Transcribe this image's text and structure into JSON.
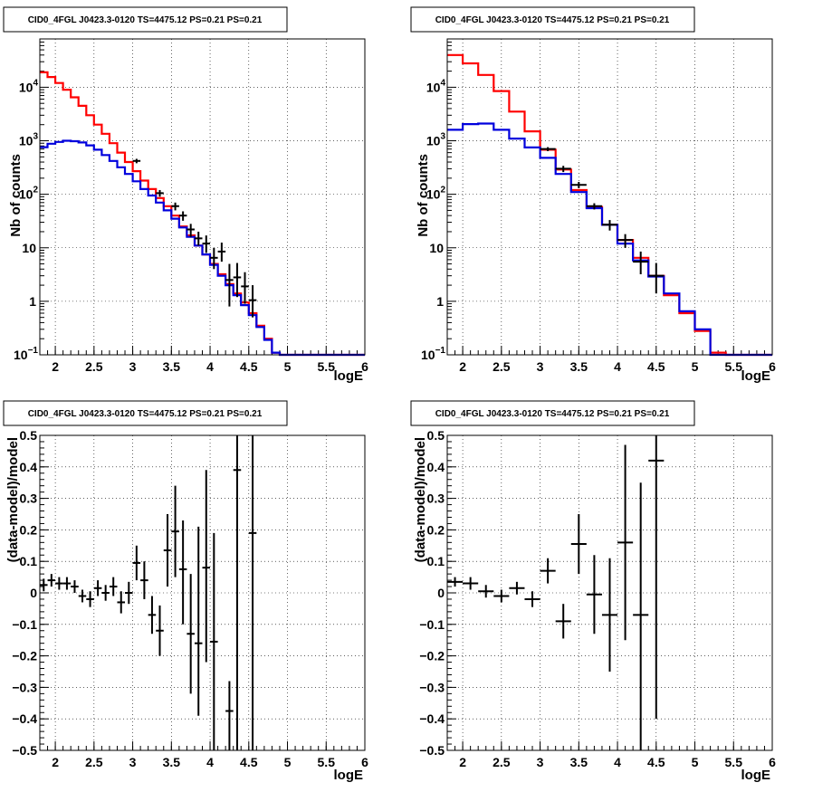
{
  "chart_data": [
    {
      "type": "line",
      "title": "CID0_4FGL J0423.3-0120 TS=4475.12 PS=0.21 PS=0.21",
      "xlabel": "logE",
      "ylabel": "Nb of counts",
      "xlim": [
        1.8,
        6.0
      ],
      "ylim": [
        0.1,
        80000
      ],
      "yscale": "log",
      "grid": true,
      "x_ticks": [
        "2",
        "2.5",
        "3",
        "3.5",
        "4",
        "4.5",
        "5",
        "5.5",
        "6"
      ],
      "y_ticks": [
        {
          "value": 0.1,
          "label": "10",
          "sup": "−1"
        },
        {
          "value": 1,
          "label": "1",
          "sup": ""
        },
        {
          "value": 10,
          "label": "10",
          "sup": ""
        },
        {
          "value": 100,
          "label": "10",
          "sup": "2"
        },
        {
          "value": 1000,
          "label": "10",
          "sup": "3"
        },
        {
          "value": 10000,
          "label": "10",
          "sup": "4"
        }
      ],
      "bin_edges": [
        1.8,
        1.9,
        2.0,
        2.1,
        2.2,
        2.3,
        2.4,
        2.5,
        2.6,
        2.7,
        2.8,
        2.9,
        3.0,
        3.1,
        3.2,
        3.3,
        3.4,
        3.5,
        3.6,
        3.7,
        3.8,
        3.9,
        4.0,
        4.1,
        4.2,
        4.3,
        4.4,
        4.5,
        4.6,
        4.7,
        4.8,
        4.9,
        5.0,
        5.1,
        5.2,
        5.3,
        5.4,
        5.5,
        5.6,
        5.7,
        5.8,
        5.9,
        6.0
      ],
      "series": [
        {
          "name": "",
          "color": "#ff0000",
          "values": [
            19000,
            15500,
            12000,
            9000,
            6500,
            4500,
            3000,
            2000,
            1350,
            900,
            600,
            400,
            270,
            180,
            125,
            85,
            60,
            40,
            25,
            17,
            11,
            7.5,
            5,
            3.2,
            2.1,
            1.4,
            0.95,
            0.6,
            0.35,
            0.2,
            0.11,
            0.1,
            0.1,
            0.1,
            0.1,
            0.1,
            0.1,
            0.1,
            0.1,
            0.1,
            0.1,
            0.1
          ]
        },
        {
          "name": "",
          "color": "#0000dd",
          "values": [
            760,
            880,
            950,
            1000,
            980,
            930,
            820,
            680,
            540,
            420,
            320,
            240,
            175,
            125,
            95,
            70,
            50,
            35,
            24,
            16,
            11,
            7.5,
            4.8,
            3.0,
            2.0,
            1.3,
            0.85,
            0.55,
            0.33,
            0.19,
            0.11,
            0.1,
            0.1,
            0.1,
            0.1,
            0.1,
            0.1,
            0.1,
            0.1,
            0.1,
            0.1,
            0.1
          ]
        }
      ],
      "points": [
        {
          "x": 3.05,
          "y": 420,
          "xerr": 0.05,
          "ylo": 380,
          "yhi": 460
        },
        {
          "x": 3.35,
          "y": 105,
          "xerr": 0.05,
          "ylo": 90,
          "yhi": 120
        },
        {
          "x": 3.55,
          "y": 60,
          "xerr": 0.05,
          "ylo": 50,
          "yhi": 70
        },
        {
          "x": 3.65,
          "y": 40,
          "xerr": 0.05,
          "ylo": 32,
          "yhi": 48
        },
        {
          "x": 3.75,
          "y": 22,
          "xerr": 0.05,
          "ylo": 16,
          "yhi": 28
        },
        {
          "x": 3.85,
          "y": 15,
          "xerr": 0.05,
          "ylo": 11,
          "yhi": 20
        },
        {
          "x": 3.95,
          "y": 12,
          "xerr": 0.05,
          "ylo": 8,
          "yhi": 17
        },
        {
          "x": 4.05,
          "y": 6.5,
          "xerr": 0.05,
          "ylo": 4,
          "yhi": 10
        },
        {
          "x": 4.15,
          "y": 8.5,
          "xerr": 0.05,
          "ylo": 5.5,
          "yhi": 12.5
        },
        {
          "x": 4.25,
          "y": 2.5,
          "xerr": 0.05,
          "ylo": 0.8,
          "yhi": 5
        },
        {
          "x": 4.35,
          "y": 2.8,
          "xerr": 0.05,
          "ylo": 1.2,
          "yhi": 5.2
        },
        {
          "x": 4.45,
          "y": 1.9,
          "xerr": 0.05,
          "ylo": 0.9,
          "yhi": 3.5
        },
        {
          "x": 4.55,
          "y": 1.05,
          "xerr": 0.05,
          "ylo": 0.5,
          "yhi": 2.0
        }
      ]
    },
    {
      "type": "line",
      "title": "CID0_4FGL J0423.3-0120 TS=4475.12 PS=0.21 PS=0.21",
      "xlabel": "logE",
      "ylabel": "Nb of counts",
      "xlim": [
        1.8,
        6.0
      ],
      "ylim": [
        0.1,
        80000
      ],
      "yscale": "log",
      "grid": true,
      "x_ticks": [
        "2",
        "2.5",
        "3",
        "3.5",
        "4",
        "4.5",
        "5",
        "5.5",
        "6"
      ],
      "y_ticks": [
        {
          "value": 0.1,
          "label": "10",
          "sup": "−1"
        },
        {
          "value": 1,
          "label": "1",
          "sup": ""
        },
        {
          "value": 10,
          "label": "10",
          "sup": ""
        },
        {
          "value": 100,
          "label": "10",
          "sup": "2"
        },
        {
          "value": 1000,
          "label": "10",
          "sup": "3"
        },
        {
          "value": 10000,
          "label": "10",
          "sup": "4"
        }
      ],
      "bin_edges": [
        1.8,
        2.0,
        2.2,
        2.4,
        2.6,
        2.8,
        3.0,
        3.2,
        3.4,
        3.6,
        3.8,
        4.0,
        4.2,
        4.4,
        4.6,
        4.8,
        5.0,
        5.2,
        5.4,
        5.6,
        5.8,
        6.0
      ],
      "series": [
        {
          "name": "",
          "color": "#ff0000",
          "values": [
            40000,
            28000,
            17000,
            8500,
            3500,
            1500,
            680,
            290,
            120,
            58,
            27,
            14,
            6.5,
            3.0,
            1.3,
            0.6,
            0.28,
            0.11,
            0.1,
            0.1,
            0.1
          ]
        },
        {
          "name": "",
          "color": "#0000dd",
          "values": [
            1600,
            2050,
            2100,
            1600,
            1100,
            750,
            480,
            240,
            110,
            55,
            27,
            12,
            5.8,
            2.9,
            1.4,
            0.65,
            0.3,
            0.1,
            0.1,
            0.1,
            0.1
          ]
        }
      ],
      "points": [
        {
          "x": 3.1,
          "y": 700,
          "xerr": 0.1,
          "ylo": 640,
          "yhi": 760
        },
        {
          "x": 3.3,
          "y": 300,
          "xerr": 0.1,
          "ylo": 260,
          "yhi": 340
        },
        {
          "x": 3.5,
          "y": 150,
          "xerr": 0.1,
          "ylo": 130,
          "yhi": 170
        },
        {
          "x": 3.7,
          "y": 60,
          "xerr": 0.1,
          "ylo": 52,
          "yhi": 68
        },
        {
          "x": 3.9,
          "y": 27,
          "xerr": 0.1,
          "ylo": 21,
          "yhi": 33
        },
        {
          "x": 4.1,
          "y": 14,
          "xerr": 0.1,
          "ylo": 10,
          "yhi": 18
        },
        {
          "x": 4.3,
          "y": 5.5,
          "xerr": 0.1,
          "ylo": 3.2,
          "yhi": 8.5
        },
        {
          "x": 4.5,
          "y": 3.0,
          "xerr": 0.1,
          "ylo": 1.4,
          "yhi": 5.2
        }
      ]
    },
    {
      "type": "scatter",
      "title": "CID0_4FGL J0423.3-0120 TS=4475.12 PS=0.21 PS=0.21",
      "xlabel": "logE",
      "ylabel": "(data-model)/model",
      "xlim": [
        1.8,
        6.0
      ],
      "ylim": [
        -0.5,
        0.5
      ],
      "grid": true,
      "x_ticks": [
        "2",
        "2.5",
        "3",
        "3.5",
        "4",
        "4.5",
        "5",
        "5.5",
        "6"
      ],
      "y_ticks": [
        "−0.5",
        "−0.4",
        "−0.3",
        "−0.2",
        "−0.1",
        "0",
        "0.1",
        "0.2",
        "0.3",
        "0.4",
        "0.5"
      ],
      "points": [
        {
          "x": 1.85,
          "y": 0.025,
          "xerr": 0.05,
          "ylo": 0.005,
          "yhi": 0.045
        },
        {
          "x": 1.95,
          "y": 0.04,
          "xerr": 0.05,
          "ylo": 0.02,
          "yhi": 0.06
        },
        {
          "x": 2.05,
          "y": 0.03,
          "xerr": 0.05,
          "ylo": 0.01,
          "yhi": 0.05
        },
        {
          "x": 2.15,
          "y": 0.03,
          "xerr": 0.05,
          "ylo": 0.01,
          "yhi": 0.05
        },
        {
          "x": 2.25,
          "y": 0.02,
          "xerr": 0.05,
          "ylo": 0.0,
          "yhi": 0.04
        },
        {
          "x": 2.35,
          "y": -0.01,
          "xerr": 0.05,
          "ylo": -0.03,
          "yhi": 0.01
        },
        {
          "x": 2.45,
          "y": -0.02,
          "xerr": 0.05,
          "ylo": -0.045,
          "yhi": 0.005
        },
        {
          "x": 2.55,
          "y": 0.015,
          "xerr": 0.05,
          "ylo": -0.01,
          "yhi": 0.04
        },
        {
          "x": 2.65,
          "y": 0.0,
          "xerr": 0.05,
          "ylo": -0.025,
          "yhi": 0.025
        },
        {
          "x": 2.75,
          "y": 0.02,
          "xerr": 0.05,
          "ylo": -0.01,
          "yhi": 0.05
        },
        {
          "x": 2.85,
          "y": -0.03,
          "xerr": 0.05,
          "ylo": -0.065,
          "yhi": 0.005
        },
        {
          "x": 2.95,
          "y": 0.0,
          "xerr": 0.05,
          "ylo": -0.035,
          "yhi": 0.035
        },
        {
          "x": 3.05,
          "y": 0.095,
          "xerr": 0.05,
          "ylo": 0.04,
          "yhi": 0.15
        },
        {
          "x": 3.15,
          "y": 0.04,
          "xerr": 0.05,
          "ylo": -0.02,
          "yhi": 0.1
        },
        {
          "x": 3.25,
          "y": -0.07,
          "xerr": 0.05,
          "ylo": -0.13,
          "yhi": -0.01
        },
        {
          "x": 3.35,
          "y": -0.12,
          "xerr": 0.05,
          "ylo": -0.2,
          "yhi": -0.04
        },
        {
          "x": 3.45,
          "y": 0.135,
          "xerr": 0.05,
          "ylo": 0.02,
          "yhi": 0.25
        },
        {
          "x": 3.55,
          "y": 0.195,
          "xerr": 0.05,
          "ylo": 0.05,
          "yhi": 0.34
        },
        {
          "x": 3.65,
          "y": 0.075,
          "xerr": 0.05,
          "ylo": -0.1,
          "yhi": 0.23
        },
        {
          "x": 3.75,
          "y": -0.13,
          "xerr": 0.05,
          "ylo": -0.32,
          "yhi": 0.06
        },
        {
          "x": 3.85,
          "y": -0.16,
          "xerr": 0.05,
          "ylo": -0.39,
          "yhi": 0.21
        },
        {
          "x": 3.95,
          "y": 0.08,
          "xerr": 0.05,
          "ylo": -0.22,
          "yhi": 0.39
        },
        {
          "x": 4.05,
          "y": -0.155,
          "xerr": 0.05,
          "ylo": -0.5,
          "yhi": 0.19
        },
        {
          "x": 4.25,
          "y": -0.375,
          "xerr": 0.05,
          "ylo": -0.5,
          "yhi": -0.28
        },
        {
          "x": 4.35,
          "y": 0.39,
          "xerr": 0.05,
          "ylo": -0.5,
          "yhi": 0.5
        },
        {
          "x": 4.55,
          "y": 0.19,
          "xerr": 0.05,
          "ylo": -0.5,
          "yhi": 0.5
        }
      ]
    },
    {
      "type": "scatter",
      "title": "CID0_4FGL J0423.3-0120 TS=4475.12 PS=0.21 PS=0.21",
      "xlabel": "logE",
      "ylabel": "(data-model)/model",
      "xlim": [
        1.8,
        6.0
      ],
      "ylim": [
        -0.5,
        0.5
      ],
      "grid": true,
      "x_ticks": [
        "2",
        "2.5",
        "3",
        "3.5",
        "4",
        "4.5",
        "5",
        "5.5",
        "6"
      ],
      "y_ticks": [
        "−0.5",
        "−0.4",
        "−0.3",
        "−0.2",
        "−0.1",
        "0",
        "0.1",
        "0.2",
        "0.3",
        "0.4",
        "0.5"
      ],
      "points": [
        {
          "x": 1.9,
          "y": 0.035,
          "xerr": 0.1,
          "ylo": 0.02,
          "yhi": 0.05
        },
        {
          "x": 2.1,
          "y": 0.03,
          "xerr": 0.1,
          "ylo": 0.01,
          "yhi": 0.05
        },
        {
          "x": 2.3,
          "y": 0.005,
          "xerr": 0.1,
          "ylo": -0.015,
          "yhi": 0.025
        },
        {
          "x": 2.5,
          "y": -0.01,
          "xerr": 0.1,
          "ylo": -0.03,
          "yhi": 0.01
        },
        {
          "x": 2.7,
          "y": 0.015,
          "xerr": 0.1,
          "ylo": -0.005,
          "yhi": 0.035
        },
        {
          "x": 2.9,
          "y": -0.02,
          "xerr": 0.1,
          "ylo": -0.045,
          "yhi": 0.005
        },
        {
          "x": 3.1,
          "y": 0.07,
          "xerr": 0.1,
          "ylo": 0.03,
          "yhi": 0.11
        },
        {
          "x": 3.3,
          "y": -0.09,
          "xerr": 0.1,
          "ylo": -0.145,
          "yhi": -0.035
        },
        {
          "x": 3.5,
          "y": 0.155,
          "xerr": 0.1,
          "ylo": 0.06,
          "yhi": 0.25
        },
        {
          "x": 3.7,
          "y": -0.005,
          "xerr": 0.1,
          "ylo": -0.13,
          "yhi": 0.12
        },
        {
          "x": 3.9,
          "y": -0.07,
          "xerr": 0.1,
          "ylo": -0.25,
          "yhi": 0.11
        },
        {
          "x": 4.1,
          "y": 0.16,
          "xerr": 0.1,
          "ylo": -0.15,
          "yhi": 0.47
        },
        {
          "x": 4.3,
          "y": -0.07,
          "xerr": 0.1,
          "ylo": -0.5,
          "yhi": 0.35
        },
        {
          "x": 4.5,
          "y": 0.42,
          "xerr": 0.1,
          "ylo": -0.4,
          "yhi": 0.5
        }
      ]
    }
  ]
}
